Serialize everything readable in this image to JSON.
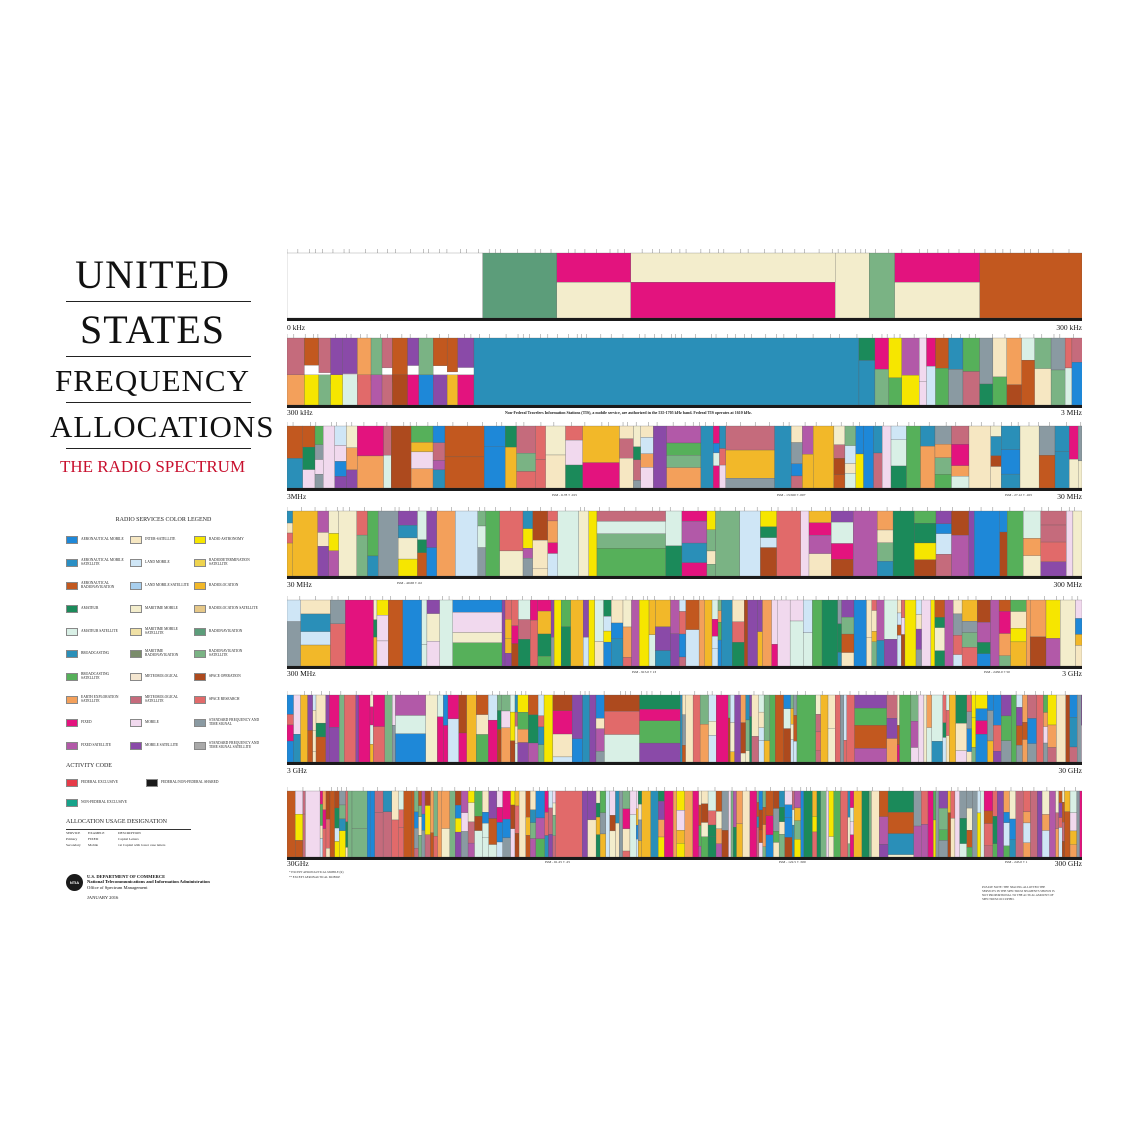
{
  "title": {
    "line1": "UNITED",
    "line2": "STATES",
    "line3": "FREQUENCY",
    "line4": "ALLOCATIONS",
    "subtitle": "THE RADIO SPECTRUM"
  },
  "colors": {
    "aeronautical_mobile": "#1e88d8",
    "aero_mobile_satellite": "#2a8fc4",
    "aero_radionavigation": "#c2581f",
    "amateur": "#1b8a5a",
    "amateur_satellite": "#d9f0e6",
    "broadcasting": "#2a8fb8",
    "broadcasting_satellite": "#56b05a",
    "earth_exploration_satellite": "#f3a05b",
    "fixed": "#e3137e",
    "fixed_satellite": "#b259a8",
    "inter_satellite": "#f6e7c2",
    "land_mobile": "#cfe6f6",
    "land_mobile_satellite": "#a8cfee",
    "maritime_mobile": "#f3edcc",
    "maritime_mobile_satellite": "#f0e1a6",
    "maritime_radionavigation": "#7a8c6a",
    "meteorological": "#f4e6d0",
    "meteorological_satellite": "#c56b7c",
    "mobile": "#f1d9ee",
    "mobile_satellite": "#8a4aa8",
    "radio_astronomy": "#f6e600",
    "radiodetermination_satellite": "#eed34e",
    "radiolocation": "#f2b829",
    "radiolocation_satellite": "#e6c888",
    "radionavigation": "#5c9d7a",
    "radionavigation_satellite": "#7ab384",
    "space_operation": "#ad4a1e",
    "space_research": "#e16a6a",
    "standard_frequency": "#8a9aa2",
    "standard_freq_satellite": "#a9a9a9",
    "federal_exclusive": "#e63b49",
    "federal_nonfederal_shared": "#1a1a1a",
    "nonfederal_exclusive": "#16a38a",
    "not_allocated": "#ffffff"
  },
  "legend": {
    "heading": "RADIO SERVICES COLOR LEGEND",
    "items": [
      {
        "label": "AERONAUTICAL MOBILE",
        "color_key": "aeronautical_mobile"
      },
      {
        "label": "INTER-SATELLITE",
        "color_key": "inter_satellite"
      },
      {
        "label": "RADIO ASTRONOMY",
        "color_key": "radio_astronomy"
      },
      {
        "label": "AERONAUTICAL MOBILE SATELLITE",
        "color_key": "aero_mobile_satellite"
      },
      {
        "label": "LAND MOBILE",
        "color_key": "land_mobile"
      },
      {
        "label": "RADIODETERMINATION SATELLITE",
        "color_key": "radiodetermination_satellite"
      },
      {
        "label": "AERONAUTICAL RADIONAVIGATION",
        "color_key": "aero_radionavigation"
      },
      {
        "label": "LAND MOBILE SATELLITE",
        "color_key": "land_mobile_satellite"
      },
      {
        "label": "RADIOLOCATION",
        "color_key": "radiolocation"
      },
      {
        "label": "AMATEUR",
        "color_key": "amateur"
      },
      {
        "label": "MARITIME MOBILE",
        "color_key": "maritime_mobile"
      },
      {
        "label": "RADIOLOCATION SATELLITE",
        "color_key": "radiolocation_satellite"
      },
      {
        "label": "AMATEUR SATELLITE",
        "color_key": "amateur_satellite"
      },
      {
        "label": "MARITIME MOBILE SATELLITE",
        "color_key": "maritime_mobile_satellite"
      },
      {
        "label": "RADIONAVIGATION",
        "color_key": "radionavigation"
      },
      {
        "label": "BROADCASTING",
        "color_key": "broadcasting"
      },
      {
        "label": "MARITIME RADIONAVIGATION",
        "color_key": "maritime_radionavigation"
      },
      {
        "label": "RADIONAVIGATION SATELLITE",
        "color_key": "radionavigation_satellite"
      },
      {
        "label": "BROADCASTING SATELLITE",
        "color_key": "broadcasting_satellite"
      },
      {
        "label": "METEOROLOGICAL",
        "color_key": "meteorological"
      },
      {
        "label": "SPACE OPERATION",
        "color_key": "space_operation"
      },
      {
        "label": "EARTH EXPLORATION SATELLITE",
        "color_key": "earth_exploration_satellite"
      },
      {
        "label": "METEOROLOGICAL SATELLITE",
        "color_key": "meteorological_satellite"
      },
      {
        "label": "SPACE RESEARCH",
        "color_key": "space_research"
      },
      {
        "label": "FIXED",
        "color_key": "fixed"
      },
      {
        "label": "MOBILE",
        "color_key": "mobile"
      },
      {
        "label": "STANDARD FREQUENCY AND TIME SIGNAL",
        "color_key": "standard_frequency"
      },
      {
        "label": "FIXED SATELLITE",
        "color_key": "fixed_satellite"
      },
      {
        "label": "MOBILE SATELLITE",
        "color_key": "mobile_satellite"
      },
      {
        "label": "STANDARD FREQUENCY AND TIME SIGNAL SATELLITE",
        "color_key": "standard_freq_satellite"
      }
    ]
  },
  "activity": {
    "heading": "ACTIVITY CODE",
    "items": [
      {
        "label": "FEDERAL EXCLUSIVE",
        "color_key": "federal_exclusive"
      },
      {
        "label": "FEDERAL/NON-FEDERAL SHARED",
        "color_key": "federal_nonfederal_shared"
      },
      {
        "label": "NON-FEDERAL EXCLUSIVE",
        "color_key": "nonfederal_exclusive"
      }
    ]
  },
  "usage": {
    "heading": "ALLOCATION USAGE DESIGNATION",
    "columns": [
      "SERVICE",
      "EXAMPLE",
      "DESCRIPTION"
    ],
    "rows": [
      [
        "Primary",
        "FIXED",
        "Capital Letters"
      ],
      [
        "Secondary",
        "Mobile",
        "1st Capital with lower case letters"
      ]
    ]
  },
  "footer": {
    "department": "U.S. DEPARTMENT OF COMMERCE",
    "agency": "National Telecommunications and Information Administration",
    "office": "Office of Spectrum Management",
    "date": "JANUARY 2016",
    "logo_text": "NTIA"
  },
  "chart_data": {
    "type": "table",
    "bands": [
      {
        "start": "0 kHz",
        "end": "300 kHz"
      },
      {
        "start": "300 kHz",
        "end": "3 MHz"
      },
      {
        "start": "3MHz",
        "end": "30 MHz"
      },
      {
        "start": "30 MHz",
        "end": "300 MHz"
      },
      {
        "start": "300 MHz",
        "end": "3 GHz"
      },
      {
        "start": "3 GHz",
        "end": "30 GHz"
      },
      {
        "start": "30GHz",
        "end": "300 GHz"
      }
    ],
    "band1_segments": [
      {
        "service": "NOT ALLOCATED",
        "color_key": "not_allocated",
        "frac": 0.23
      },
      {
        "service": "RADIONAVIGATION",
        "color_key": "radionavigation",
        "frac": 0.087
      },
      {
        "service": "FIXED / MARITIME MOBILE",
        "color_key": "fixed",
        "frac": 0.087
      },
      {
        "service": "MARITIME MOBILE / FIXED",
        "color_key": "maritime_mobile",
        "frac": 0.24
      },
      {
        "service": "MARITIME MOBILE",
        "color_key": "maritime_mobile",
        "frac": 0.04
      },
      {
        "service": "RADIONAVIGATION",
        "color_key": "radionavigation_satellite",
        "frac": 0.03
      },
      {
        "service": "FIXED / MARITIME MOBILE",
        "color_key": "fixed",
        "frac": 0.1
      },
      {
        "service": "AERONAUTICAL RADIONAVIGATION",
        "color_key": "aero_radionavigation",
        "frac": 0.12
      }
    ],
    "band2_segments": [
      {
        "service": "AERONAUTICAL RADIONAVIGATION",
        "color_key": "aero_radionavigation",
        "frac": 0.1
      },
      {
        "service": "MARITIME MOBILE",
        "color_key": "maritime_mobile",
        "frac": 0.06
      },
      {
        "service": "BROADCASTING (AM RADIO)",
        "color_key": "broadcasting",
        "frac": 0.5
      },
      {
        "service": "FIXED / MOBILE",
        "color_key": "fixed",
        "frac": 0.24
      }
    ],
    "fin_note": "Non-Federal Travelers Information Stations (TIS), a mobile service, are authorized in the 535-1705 kHz band. Federal TIS operates at 1610 kHz.",
    "ism_band3": [
      "ISM - 6.78 ± .015",
      "ISM - 13.560 ± .007",
      "ISM - 27.12 ± .163"
    ],
    "ism_band4": [
      "ISM - 40.68 ± .02"
    ],
    "ism_band5": [
      "ISM - 915.0 ± 13",
      "ISM - 2450.0 ± 50"
    ],
    "ism_band7": [
      "ISM - 61.25 ± .25",
      "ISM - 122.5 ± .500",
      "ISM - 245.0 ± 1"
    ],
    "bottom_notes": [
      "* EXCEPT AERONAUTICAL MOBILE (R)",
      "** EXCEPT AERONAUTICAL MOBILE"
    ],
    "right_note": "PLEASE NOTE: THE SPACING ALLOTTED THE SERVICES IN THE SPECTRUM SEGMENTS SHOWN IS NOT PROPORTIONAL TO THE ACTUAL AMOUNT OF SPECTRUM OCCUPIED."
  }
}
